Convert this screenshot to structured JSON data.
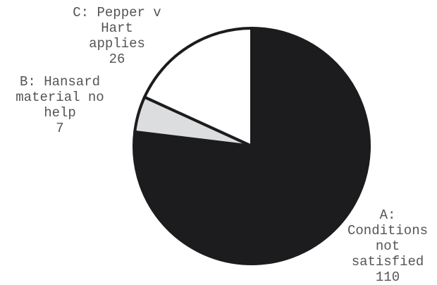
{
  "chart_data": {
    "type": "pie",
    "title": "",
    "slices": [
      {
        "label": "A: Conditions not satisfied",
        "value": 110,
        "color": "#1c1b1d"
      },
      {
        "label": "B: Hansard material no help",
        "value": 7,
        "color": "#dcdddf"
      },
      {
        "label": "C: Pepper v Hart applies",
        "value": 26,
        "color": "#ffffff"
      }
    ],
    "start_angle_deg": 0,
    "direction": "clockwise",
    "slice_border_color": "#1c1b1d",
    "label_color": "#555555"
  }
}
